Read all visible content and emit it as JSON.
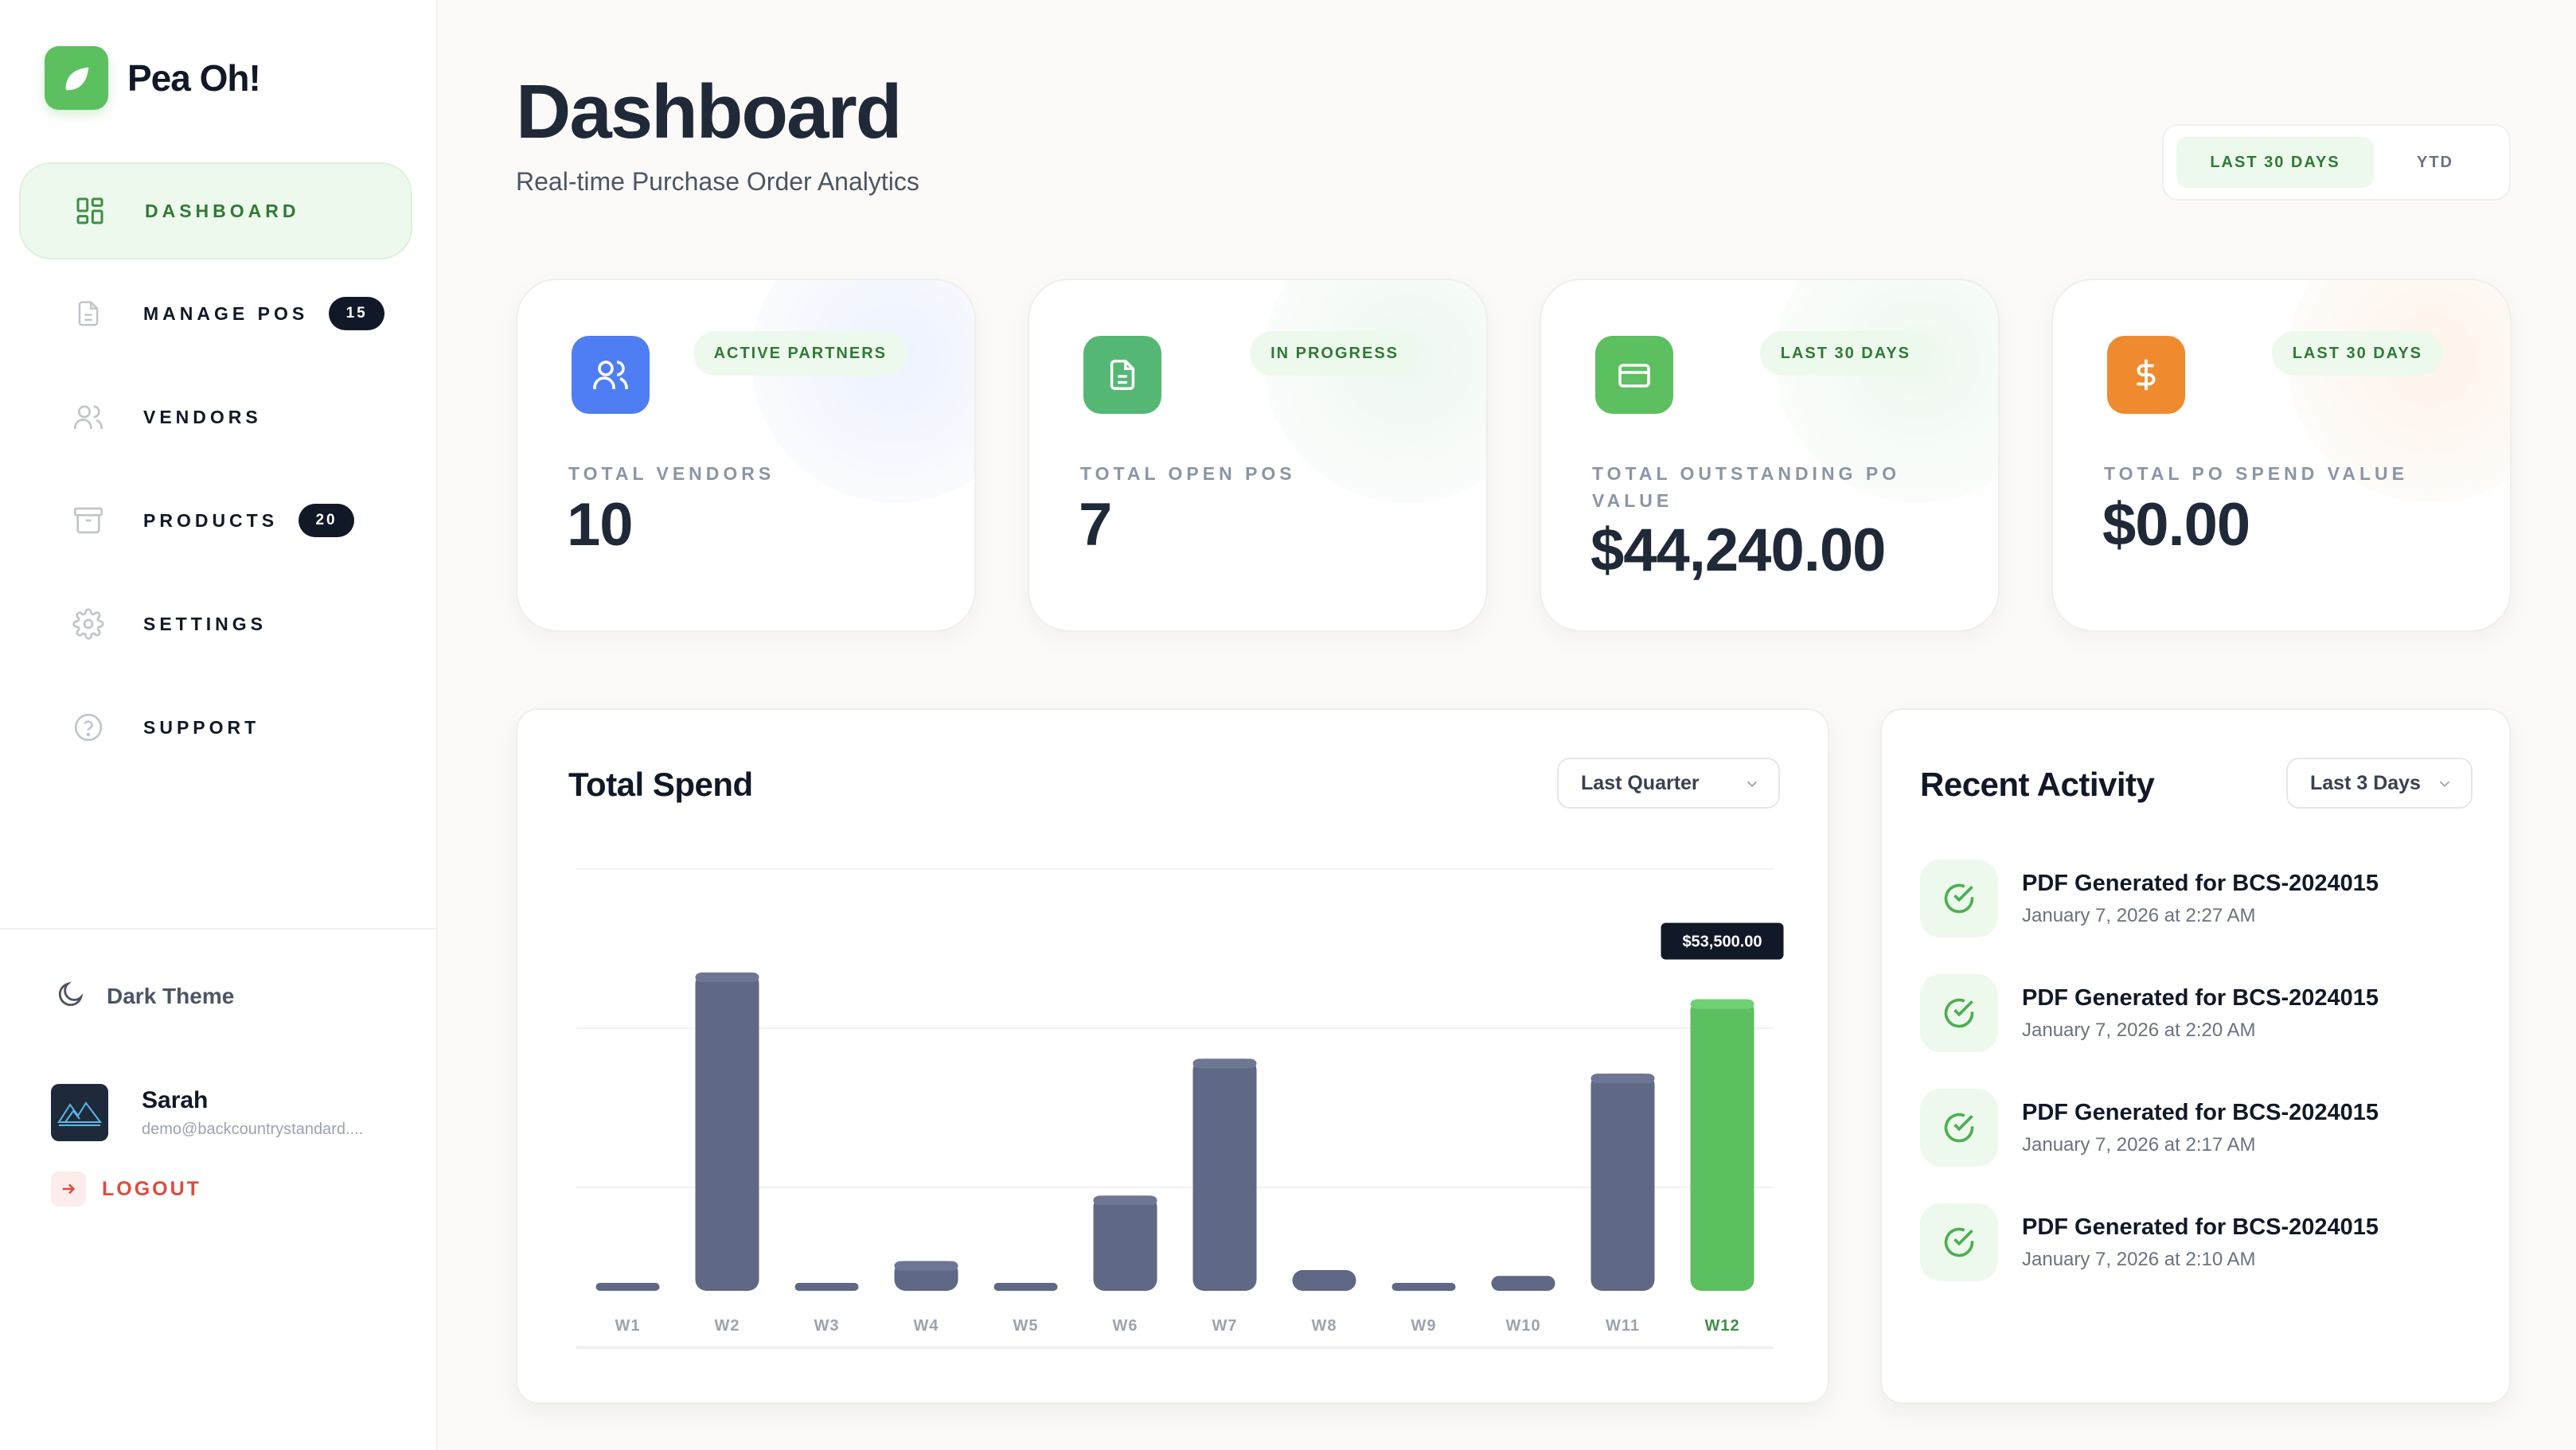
{
  "app": {
    "name": "Pea Oh!"
  },
  "sidebar": {
    "items": [
      {
        "label": "DASHBOARD",
        "icon": "dashboard-grid-icon",
        "active": true
      },
      {
        "label": "MANAGE POS",
        "icon": "document-icon",
        "badge": "15"
      },
      {
        "label": "VENDORS",
        "icon": "users-icon"
      },
      {
        "label": "PRODUCTS",
        "icon": "archive-box-icon",
        "badge": "20"
      },
      {
        "label": "SETTINGS",
        "icon": "gear-icon"
      },
      {
        "label": "SUPPORT",
        "icon": "help-circle-icon"
      }
    ],
    "theme_label": "Dark Theme",
    "user": {
      "name": "Sarah",
      "email": "demo@backcountrystandard...."
    },
    "logout_label": "LOGOUT"
  },
  "header": {
    "title": "Dashboard",
    "subtitle": "Real-time Purchase Order Analytics",
    "range_options": [
      "LAST 30 DAYS",
      "YTD"
    ],
    "range_selected": "LAST 30 DAYS"
  },
  "stats": [
    {
      "pill": "ACTIVE PARTNERS",
      "label": "TOTAL VENDORS",
      "value": "10",
      "icon": "users-icon",
      "color": "#4f7df3"
    },
    {
      "pill": "IN PROGRESS",
      "label": "TOTAL OPEN POS",
      "value": "7",
      "icon": "document-icon",
      "color": "#55b774"
    },
    {
      "pill": "LAST 30 DAYS",
      "label": "TOTAL OUTSTANDING PO VALUE",
      "value": "$44,240.00",
      "icon": "credit-card-icon",
      "color": "#5cbf60"
    },
    {
      "pill": "LAST 30 DAYS",
      "label": "TOTAL PO SPEND VALUE",
      "value": "$0.00",
      "icon": "dollar-icon",
      "color": "#f08a2e"
    }
  ],
  "spend": {
    "title": "Total Spend",
    "period_selected": "Last Quarter",
    "tooltip": "$53,500.00"
  },
  "chart_data": {
    "type": "bar",
    "categories": [
      "W1",
      "W2",
      "W3",
      "W4",
      "W5",
      "W6",
      "W7",
      "W8",
      "W9",
      "W10",
      "W11",
      "W12"
    ],
    "values": [
      0,
      53500,
      0,
      5000,
      0,
      16000,
      39000,
      3500,
      0,
      2500,
      36500,
      49000
    ],
    "highlight_index": 11,
    "title": "Total Spend",
    "xlabel": "",
    "ylabel": "",
    "ylim": [
      0,
      53500
    ],
    "grid": true,
    "colors": {
      "bar": "#5f6884",
      "highlight": "#5cbf60"
    }
  },
  "activity": {
    "title": "Recent Activity",
    "period_selected": "Last 3 Days",
    "items": [
      {
        "title": "PDF Generated for BCS-2024015",
        "time": "January 7, 2026 at 2:27 AM"
      },
      {
        "title": "PDF Generated for BCS-2024015",
        "time": "January 7, 2026 at 2:20 AM"
      },
      {
        "title": "PDF Generated for BCS-2024015",
        "time": "January 7, 2026 at 2:17 AM"
      },
      {
        "title": "PDF Generated for BCS-2024015",
        "time": "January 7, 2026 at 2:10 AM"
      }
    ]
  }
}
